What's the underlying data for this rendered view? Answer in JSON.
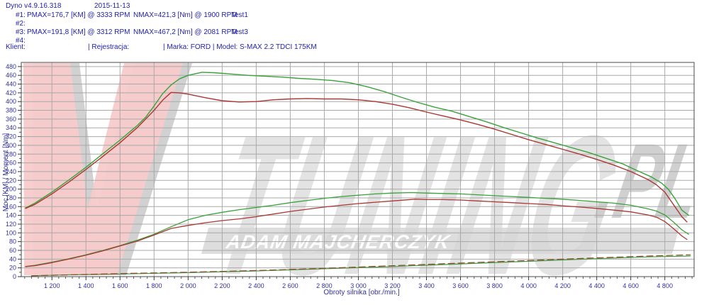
{
  "header": {
    "app_title": "Dyno v4.9.16.318",
    "date": "2015-11-13",
    "runs": [
      {
        "id": "#1:",
        "pmax": "PMAX=176,7 [KM] @ 3333 RPM",
        "nmax": "NMAX=421,3 [Nm] @ 1900 RPM",
        "test": "Test1"
      },
      {
        "id": "#2:",
        "pmax": "",
        "nmax": "",
        "test": ""
      },
      {
        "id": "#3:",
        "pmax": "PMAX=191,8 [KM] @ 3312 RPM",
        "nmax": "NMAX=467,2 [Nm] @ 2081 RPM",
        "test": "Test3"
      },
      {
        "id": "#4:",
        "pmax": "",
        "nmax": "",
        "test": ""
      }
    ],
    "klient_label": "Klient:",
    "rejestracja_label": "| Rejestracja:",
    "marka_model": "| Marka: FORD | Model: S-MAX 2.2 TDCI 175KM"
  },
  "watermark": {
    "brand_text": "TUNING",
    "brand_suffix": ".PL",
    "banner_text": "ADAM MAJCHERCZYK",
    "pink": "#f7caca",
    "shadow_grey": "#c9c9c9",
    "letter_grey": "#d9d9d9",
    "banner_grey": "#d5d5d5"
  },
  "chart_data": {
    "type": "line",
    "xlabel": "Obroty silnika [obr./min.]",
    "ylabel": "Moc [KM] / Moment [Nm]",
    "xlim": [
      1020,
      4972
    ],
    "ylim": [
      0,
      489.5
    ],
    "x_tick_values": [
      1200,
      1400,
      1600,
      1800,
      2000,
      2200,
      2400,
      2600,
      2800,
      3000,
      3200,
      3400,
      3600,
      3800,
      4000,
      4200,
      4400,
      4600,
      4800
    ],
    "x_tick_labels": [
      "1 200",
      "1 400",
      "1 600",
      "1 800",
      "2 000",
      "2 200",
      "2 400",
      "2 600",
      "2 800",
      "3 000",
      "3 200",
      "3 400",
      "3 600",
      "3 800",
      "4 000",
      "4 200",
      "4 400",
      "4 600",
      "4 800"
    ],
    "y_ticks": {
      "min": 0,
      "max": 480,
      "step": 20
    },
    "x_minor_step": 40,
    "y_minor_step": 10,
    "grid_color": "#a9a9a9",
    "axis_text_color": "#32329b",
    "series": [
      {
        "name": "torque-test3",
        "unit": "Nm",
        "color": "#3aa23a",
        "width": 1.4,
        "points": [
          [
            1045,
            157
          ],
          [
            1100,
            168
          ],
          [
            1200,
            193
          ],
          [
            1300,
            221
          ],
          [
            1400,
            250
          ],
          [
            1500,
            281
          ],
          [
            1600,
            312
          ],
          [
            1700,
            345
          ],
          [
            1750,
            364
          ],
          [
            1800,
            390
          ],
          [
            1850,
            418
          ],
          [
            1900,
            438
          ],
          [
            1950,
            452
          ],
          [
            2000,
            460
          ],
          [
            2081,
            467
          ],
          [
            2150,
            466
          ],
          [
            2250,
            463
          ],
          [
            2350,
            460
          ],
          [
            2450,
            458
          ],
          [
            2550,
            456
          ],
          [
            2650,
            453
          ],
          [
            2750,
            451
          ],
          [
            2850,
            448
          ],
          [
            2950,
            443
          ],
          [
            3050,
            434
          ],
          [
            3150,
            423
          ],
          [
            3250,
            410
          ],
          [
            3350,
            398
          ],
          [
            3450,
            387
          ],
          [
            3550,
            378
          ],
          [
            3650,
            366
          ],
          [
            3750,
            354
          ],
          [
            3850,
            341
          ],
          [
            3950,
            329
          ],
          [
            4050,
            317
          ],
          [
            4150,
            306
          ],
          [
            4250,
            295
          ],
          [
            4350,
            284
          ],
          [
            4450,
            271
          ],
          [
            4550,
            258
          ],
          [
            4650,
            240
          ],
          [
            4720,
            228
          ],
          [
            4780,
            214
          ],
          [
            4820,
            200
          ],
          [
            4860,
            178
          ],
          [
            4900,
            152
          ],
          [
            4940,
            140
          ]
        ]
      },
      {
        "name": "torque-test1",
        "unit": "Nm",
        "color": "#aa3833",
        "width": 1.4,
        "points": [
          [
            1045,
            156
          ],
          [
            1100,
            165
          ],
          [
            1200,
            189
          ],
          [
            1300,
            216
          ],
          [
            1400,
            245
          ],
          [
            1500,
            275
          ],
          [
            1600,
            306
          ],
          [
            1700,
            340
          ],
          [
            1800,
            380
          ],
          [
            1850,
            403
          ],
          [
            1900,
            421
          ],
          [
            1950,
            420
          ],
          [
            2000,
            417
          ],
          [
            2100,
            409
          ],
          [
            2200,
            402
          ],
          [
            2300,
            399
          ],
          [
            2400,
            400
          ],
          [
            2500,
            404
          ],
          [
            2600,
            406
          ],
          [
            2700,
            407
          ],
          [
            2800,
            406
          ],
          [
            2900,
            406
          ],
          [
            3000,
            404
          ],
          [
            3100,
            400
          ],
          [
            3200,
            394
          ],
          [
            3300,
            386
          ],
          [
            3400,
            376
          ],
          [
            3500,
            367
          ],
          [
            3600,
            358
          ],
          [
            3700,
            348
          ],
          [
            3800,
            337
          ],
          [
            3900,
            325
          ],
          [
            4000,
            313
          ],
          [
            4100,
            302
          ],
          [
            4200,
            291
          ],
          [
            4300,
            280
          ],
          [
            4400,
            268
          ],
          [
            4500,
            255
          ],
          [
            4600,
            240
          ],
          [
            4700,
            222
          ],
          [
            4750,
            210
          ],
          [
            4800,
            193
          ],
          [
            4850,
            165
          ],
          [
            4900,
            137
          ],
          [
            4930,
            125
          ]
        ]
      },
      {
        "name": "power-test3",
        "unit": "KM",
        "color": "#3aa23a",
        "width": 1.3,
        "points": [
          [
            1045,
            23
          ],
          [
            1100,
            26
          ],
          [
            1200,
            33
          ],
          [
            1300,
            41
          ],
          [
            1400,
            50
          ],
          [
            1500,
            60
          ],
          [
            1600,
            71
          ],
          [
            1700,
            83
          ],
          [
            1800,
            97
          ],
          [
            1900,
            114
          ],
          [
            2000,
            130
          ],
          [
            2100,
            140
          ],
          [
            2200,
            147
          ],
          [
            2300,
            153
          ],
          [
            2400,
            158
          ],
          [
            2500,
            163
          ],
          [
            2600,
            169
          ],
          [
            2700,
            174
          ],
          [
            2800,
            179
          ],
          [
            2900,
            183
          ],
          [
            3000,
            186
          ],
          [
            3100,
            189
          ],
          [
            3200,
            191
          ],
          [
            3312,
            192
          ],
          [
            3400,
            191
          ],
          [
            3500,
            190
          ],
          [
            3600,
            189
          ],
          [
            3700,
            187
          ],
          [
            3800,
            185
          ],
          [
            3900,
            183
          ],
          [
            4000,
            181
          ],
          [
            4100,
            179
          ],
          [
            4200,
            177
          ],
          [
            4300,
            174
          ],
          [
            4400,
            171
          ],
          [
            4500,
            168
          ],
          [
            4600,
            163
          ],
          [
            4700,
            155
          ],
          [
            4750,
            150
          ],
          [
            4800,
            141
          ],
          [
            4850,
            125
          ],
          [
            4900,
            107
          ],
          [
            4940,
            97
          ]
        ]
      },
      {
        "name": "power-test1",
        "unit": "KM",
        "color": "#aa3833",
        "width": 1.3,
        "points": [
          [
            1045,
            23
          ],
          [
            1100,
            25
          ],
          [
            1200,
            32
          ],
          [
            1300,
            40
          ],
          [
            1400,
            49
          ],
          [
            1500,
            59
          ],
          [
            1600,
            70
          ],
          [
            1700,
            81
          ],
          [
            1800,
            95
          ],
          [
            1900,
            110
          ],
          [
            2000,
            117
          ],
          [
            2100,
            123
          ],
          [
            2200,
            128
          ],
          [
            2300,
            132
          ],
          [
            2400,
            137
          ],
          [
            2500,
            143
          ],
          [
            2600,
            149
          ],
          [
            2700,
            154
          ],
          [
            2800,
            159
          ],
          [
            2900,
            163
          ],
          [
            3000,
            167
          ],
          [
            3100,
            170
          ],
          [
            3200,
            173
          ],
          [
            3333,
            177
          ],
          [
            3400,
            176
          ],
          [
            3500,
            176
          ],
          [
            3600,
            175
          ],
          [
            3700,
            173
          ],
          [
            3800,
            171
          ],
          [
            3900,
            169
          ],
          [
            4000,
            167
          ],
          [
            4100,
            165
          ],
          [
            4200,
            162
          ],
          [
            4300,
            159
          ],
          [
            4400,
            156
          ],
          [
            4500,
            152
          ],
          [
            4600,
            148
          ],
          [
            4700,
            141
          ],
          [
            4750,
            136
          ],
          [
            4800,
            126
          ],
          [
            4850,
            110
          ],
          [
            4900,
            93
          ],
          [
            4930,
            85
          ]
        ]
      },
      {
        "name": "loss-test3",
        "unit": "KM",
        "color": "#4a9a4a",
        "width": 1.2,
        "points": [
          [
            1080,
            2
          ],
          [
            1300,
            4
          ],
          [
            1600,
            6
          ],
          [
            2000,
            9
          ],
          [
            2400,
            13
          ],
          [
            2800,
            18
          ],
          [
            3200,
            23
          ],
          [
            3600,
            29
          ],
          [
            4000,
            35
          ],
          [
            4400,
            41
          ],
          [
            4700,
            45
          ],
          [
            4950,
            47
          ]
        ]
      },
      {
        "name": "loss-test1",
        "unit": "KM",
        "color": "#8a4a2a",
        "width": 1.2,
        "dash": "9 5",
        "points": [
          [
            1080,
            2
          ],
          [
            1300,
            4
          ],
          [
            1600,
            7
          ],
          [
            2000,
            10
          ],
          [
            2400,
            14
          ],
          [
            2800,
            19
          ],
          [
            3200,
            25
          ],
          [
            3600,
            31
          ],
          [
            4000,
            37
          ],
          [
            4400,
            43
          ],
          [
            4700,
            47
          ],
          [
            4950,
            50
          ]
        ]
      }
    ]
  }
}
